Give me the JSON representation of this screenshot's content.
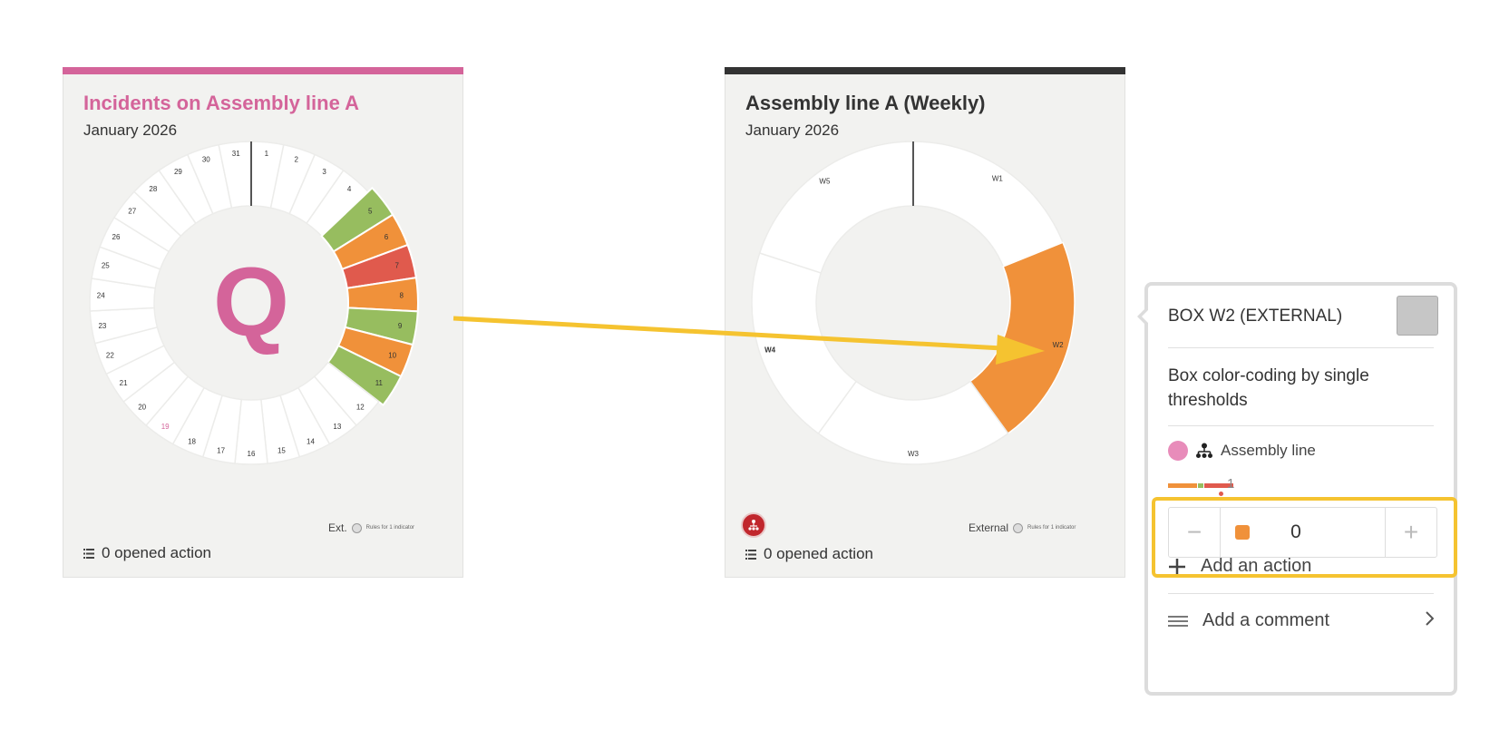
{
  "left_card": {
    "title": "Incidents on Assembly line A",
    "subtitle": "January 2026",
    "accent_color": "#d4649a",
    "center_letter": "Q",
    "days": [
      {
        "label": "1",
        "color": "#ffffff"
      },
      {
        "label": "2",
        "color": "#ffffff"
      },
      {
        "label": "3",
        "color": "#ffffff"
      },
      {
        "label": "4",
        "color": "#ffffff"
      },
      {
        "label": "5",
        "color": "#97bd5f"
      },
      {
        "label": "6",
        "color": "#f0913a"
      },
      {
        "label": "7",
        "color": "#e05a4d"
      },
      {
        "label": "8",
        "color": "#f0913a"
      },
      {
        "label": "9",
        "color": "#97bd5f"
      },
      {
        "label": "10",
        "color": "#f0913a"
      },
      {
        "label": "11",
        "color": "#97bd5f"
      },
      {
        "label": "12",
        "color": "#ffffff"
      },
      {
        "label": "13",
        "color": "#ffffff"
      },
      {
        "label": "14",
        "color": "#ffffff"
      },
      {
        "label": "15",
        "color": "#ffffff"
      },
      {
        "label": "16",
        "color": "#ffffff"
      },
      {
        "label": "17",
        "color": "#ffffff"
      },
      {
        "label": "18",
        "color": "#ffffff"
      },
      {
        "label": "19",
        "color": "#ffffff",
        "highlight": true
      },
      {
        "label": "20",
        "color": "#ffffff"
      },
      {
        "label": "21",
        "color": "#ffffff"
      },
      {
        "label": "22",
        "color": "#ffffff"
      },
      {
        "label": "23",
        "color": "#ffffff"
      },
      {
        "label": "24",
        "color": "#ffffff"
      },
      {
        "label": "25",
        "color": "#ffffff"
      },
      {
        "label": "26",
        "color": "#ffffff"
      },
      {
        "label": "27",
        "color": "#ffffff"
      },
      {
        "label": "28",
        "color": "#ffffff"
      },
      {
        "label": "29",
        "color": "#ffffff"
      },
      {
        "label": "30",
        "color": "#ffffff"
      },
      {
        "label": "31",
        "color": "#ffffff"
      }
    ],
    "legend_label": "Ext.",
    "legend_note": "Rules for 1 indicator",
    "actions_label": "0 opened action"
  },
  "right_card": {
    "title": "Assembly line A (Weekly)",
    "subtitle": "January 2026",
    "accent_color": "#333333",
    "weeks": [
      {
        "label": "W1",
        "color": "#ffffff"
      },
      {
        "label": "W2",
        "color": "#f0913a"
      },
      {
        "label": "W3",
        "color": "#ffffff"
      },
      {
        "label": "W4",
        "color": "#ffffff"
      },
      {
        "label": "W5",
        "color": "#ffffff"
      }
    ],
    "legend_label": "External",
    "legend_note": "Rules for 1 indicator",
    "actions_label": "0 opened action"
  },
  "popup": {
    "title": "BOX W2 (EXTERNAL)",
    "description": "Box color-coding by single thresholds",
    "indicator_label": "Assembly line",
    "bar_count": "1",
    "stepper_value": "0",
    "stepper_color": "#f0913a",
    "add_action_label": "Add an action",
    "add_comment_label": "Add a comment"
  },
  "colors": {
    "green": "#97bd5f",
    "orange": "#f0913a",
    "red": "#e05a4d",
    "arrow": "#f5c330"
  }
}
